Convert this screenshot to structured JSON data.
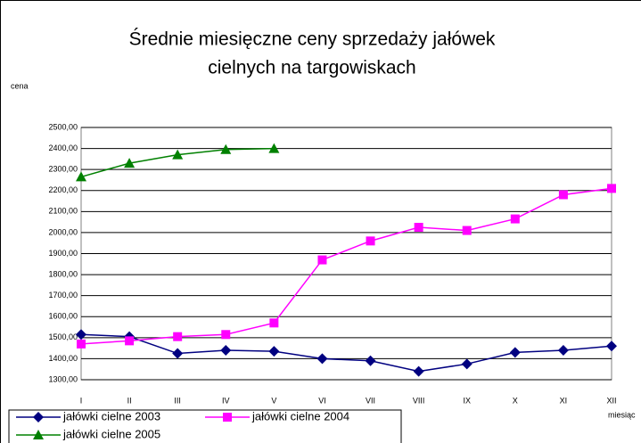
{
  "chart_data": {
    "type": "line",
    "title": [
      "Średnie miesięczne ceny sprzedaży jałówek",
      "cielnych na targowiskach"
    ],
    "y_label": "cena",
    "x_label": "miesiąc",
    "categories": [
      "I",
      "II",
      "III",
      "IV",
      "V",
      "VI",
      "VII",
      "VIII",
      "IX",
      "X",
      "XI",
      "XII"
    ],
    "series": [
      {
        "name": "jałówki cielne 2003",
        "color": "#000080",
        "marker": "diamond",
        "values": [
          1515,
          1505,
          1425,
          1440,
          1435,
          1400,
          1390,
          1340,
          1375,
          1430,
          1440,
          1460
        ]
      },
      {
        "name": "jałówki cielne 2004",
        "color": "#ff00ff",
        "marker": "square",
        "values": [
          1470,
          1485,
          1505,
          1515,
          1570,
          1870,
          1960,
          2025,
          2010,
          2065,
          2180,
          2210
        ]
      },
      {
        "name": "jałówki cielne 2005",
        "color": "#008000",
        "marker": "triangle",
        "values": [
          2265,
          2330,
          2370,
          2395,
          2400,
          null,
          null,
          null,
          null,
          null,
          null,
          null
        ]
      }
    ],
    "ylim": [
      1300,
      2500
    ],
    "yticks": [
      {
        "value": 1300,
        "label": "1300,00"
      },
      {
        "value": 1400,
        "label": "1400,00"
      },
      {
        "value": 1500,
        "label": "1500,00"
      },
      {
        "value": 1600,
        "label": "1600,00"
      },
      {
        "value": 1700,
        "label": "1700,00"
      },
      {
        "value": 1800,
        "label": "1800,00"
      },
      {
        "value": 1900,
        "label": "1900,00"
      },
      {
        "value": 2000,
        "label": "2000,00"
      },
      {
        "value": 2100,
        "label": "2100,00"
      },
      {
        "value": 2200,
        "label": "2200,00"
      },
      {
        "value": 2300,
        "label": "2300,00"
      },
      {
        "value": 2400,
        "label": "2400,00"
      },
      {
        "value": 2500,
        "label": "2500,00"
      }
    ],
    "grid": true
  }
}
